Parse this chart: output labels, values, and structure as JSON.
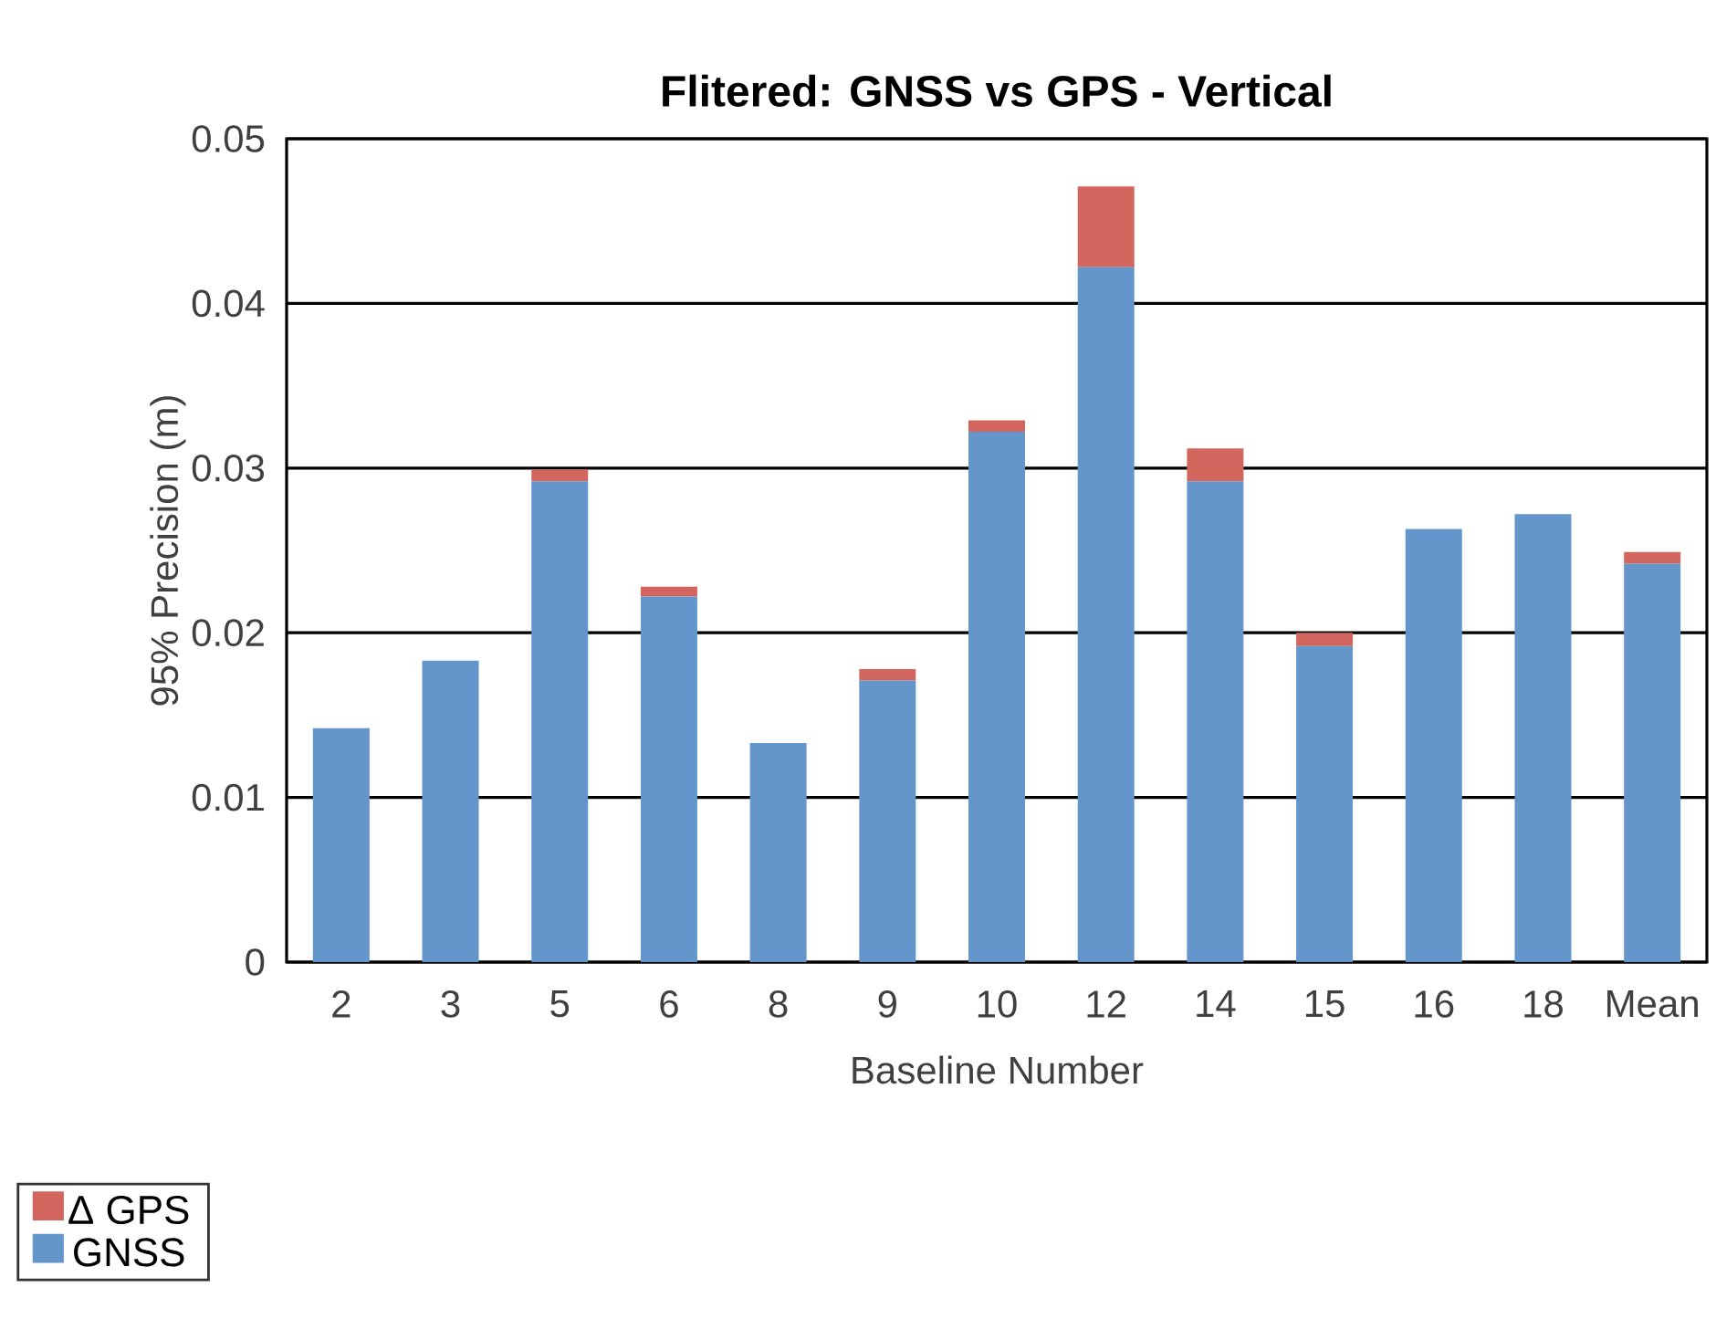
{
  "chart_data": {
    "type": "bar",
    "title": "Flitered: GNSS vs GPS - Vertical",
    "xlabel": "Baseline Number",
    "ylabel": "95% Precision (m)",
    "categories": [
      "2",
      "3",
      "5",
      "6",
      "8",
      "9",
      "10",
      "12",
      "14",
      "15",
      "16",
      "18",
      "Mean"
    ],
    "stacked": true,
    "series": [
      {
        "name": "GNSS",
        "color": "#6495cb",
        "values": [
          0.0142,
          0.0183,
          0.0292,
          0.0222,
          0.0133,
          0.0171,
          0.0322,
          0.0422,
          0.0292,
          0.0192,
          0.0263,
          0.0272,
          0.0242
        ]
      },
      {
        "name": "Δ GPS",
        "color": "#d2665e",
        "values": [
          0,
          0,
          0.0007,
          0.0006,
          0,
          0.0007,
          0.0007,
          0.0049,
          0.002,
          0.0008,
          0,
          0,
          0.0007
        ]
      }
    ],
    "ylim": [
      0,
      0.05
    ],
    "yticks": [
      0,
      0.01,
      0.02,
      0.03,
      0.04,
      0.05
    ],
    "grid": "y",
    "legend": "bottom left"
  }
}
